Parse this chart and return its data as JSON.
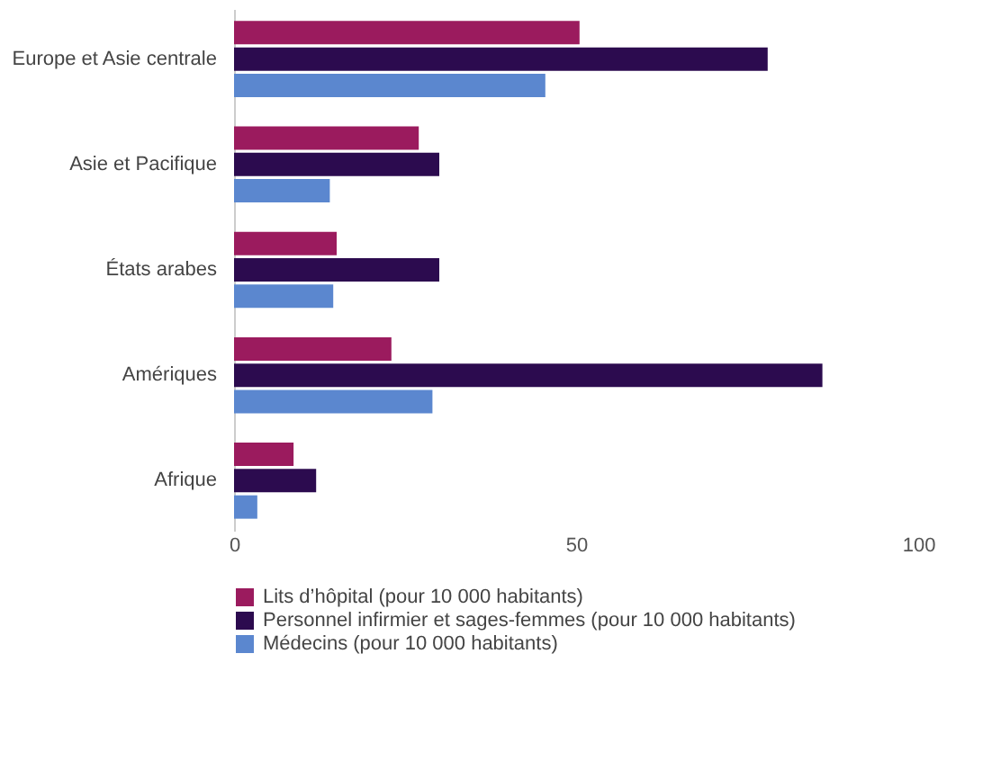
{
  "chart_data": {
    "type": "bar",
    "orientation": "horizontal",
    "categories": [
      "Europe et Asie centrale",
      "Asie et Pacifique",
      "États arabes",
      "Amériques",
      "Afrique"
    ],
    "series": [
      {
        "name": "Lits d’hôpital (pour 10 000 habitants)",
        "color": "#9b1b5e",
        "values": [
          50.5,
          27,
          15,
          23,
          8.7
        ]
      },
      {
        "name": "Personnel infirmier et sages-femmes (pour 10 000 habitants)",
        "color": "#2c0b4f",
        "values": [
          78,
          30,
          30,
          86,
          12
        ]
      },
      {
        "name": "Médecins (pour 10 000 habitants)",
        "color": "#5b87cf",
        "values": [
          45.5,
          14,
          14.5,
          29,
          3.4
        ]
      }
    ],
    "xlim": [
      0,
      100
    ],
    "xticks": [
      0,
      50,
      100
    ],
    "grid": false,
    "legend": "bottom"
  }
}
